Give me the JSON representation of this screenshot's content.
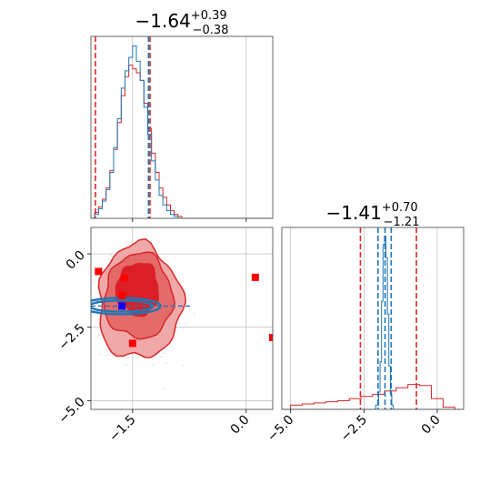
{
  "colors": {
    "red": "#d62728",
    "red_light": "#f0a8a8",
    "red_fill": "#e56a6a",
    "red_dark": "#dc1f26",
    "blue": "#1f77b4",
    "marker_red": "#ff0000",
    "marker_blue": "#0000ff",
    "grid": "#b0b0b0"
  },
  "chart_data": [
    {
      "type": "histogram",
      "panel": "top-left",
      "title": {
        "value": "−1.64",
        "plus": "+0.39",
        "minus": "−0.38"
      },
      "xlim": [
        -2.05,
        0.35
      ],
      "grid": true,
      "vlines": {
        "red": [
          -1.99,
          -1.27
        ],
        "blue": [
          -1.29
        ]
      },
      "series": [
        {
          "color": "red",
          "x": [
            -2.05,
            -2.0,
            -1.95,
            -1.9,
            -1.85,
            -1.8,
            -1.75,
            -1.7,
            -1.65,
            -1.6,
            -1.55,
            -1.5,
            -1.45,
            -1.4,
            -1.35,
            -1.3,
            -1.25,
            -1.2,
            -1.15,
            -1.1,
            -1.05,
            -1.0,
            -0.95,
            -0.9,
            -0.85,
            -0.8,
            0.35
          ],
          "values": [
            0.0,
            0.03,
            0.06,
            0.1,
            0.16,
            0.25,
            0.36,
            0.5,
            0.64,
            0.74,
            0.8,
            0.78,
            0.76,
            0.72,
            0.6,
            0.47,
            0.34,
            0.24,
            0.16,
            0.11,
            0.07,
            0.04,
            0.02,
            0.01,
            0.0,
            0.0,
            0.0
          ]
        },
        {
          "color": "blue",
          "x": [
            -2.05,
            -2.0,
            -1.95,
            -1.9,
            -1.85,
            -1.8,
            -1.75,
            -1.7,
            -1.65,
            -1.6,
            -1.55,
            -1.5,
            -1.45,
            -1.4,
            -1.35,
            -1.3,
            -1.25,
            -1.2,
            -1.15,
            -1.1,
            -1.05,
            -1.0,
            -0.95,
            -0.9,
            -0.85,
            -0.8,
            0.35
          ],
          "values": [
            0.0,
            0.02,
            0.05,
            0.09,
            0.15,
            0.24,
            0.37,
            0.52,
            0.68,
            0.77,
            0.84,
            0.9,
            0.82,
            0.72,
            0.58,
            0.44,
            0.3,
            0.2,
            0.12,
            0.07,
            0.04,
            0.02,
            0.01,
            0.0,
            0.0,
            0.0,
            0.0
          ]
        }
      ]
    },
    {
      "type": "scatter",
      "panel": "bottom-left",
      "xlim": [
        -2.05,
        0.35
      ],
      "ylim": [
        -5.3,
        0.9
      ],
      "xticks": [
        -1.5,
        0.0
      ],
      "xtick_labels": [
        "−1.5",
        "0.0"
      ],
      "yticks": [
        0.0,
        -2.5,
        -5.0
      ],
      "ytick_labels": [
        "0.0",
        "−2.5",
        "−5.0"
      ],
      "grid": true,
      "red_contours": [
        {
          "center": [
            -1.41,
            -1.64
          ],
          "rx": 0.55,
          "ry": 1.95,
          "label": "outer"
        },
        {
          "center": [
            -1.42,
            -1.45
          ],
          "rx": 0.45,
          "ry": 1.45,
          "label": "middle"
        },
        {
          "center": [
            -1.43,
            -1.2
          ],
          "rx": 0.28,
          "ry": 0.9,
          "label": "inner"
        }
      ],
      "blue_contours": [
        {
          "center": [
            -1.65,
            -1.78
          ],
          "rx": 0.52,
          "ry": 0.28
        },
        {
          "center": [
            -1.65,
            -1.78
          ],
          "rx": 0.42,
          "ry": 0.19
        }
      ],
      "red_markers": [
        {
          "x": -1.95,
          "y": -0.6
        },
        {
          "x": -1.61,
          "y": -0.82
        },
        {
          "x": -1.64,
          "y": -1.42
        },
        {
          "x": -1.5,
          "y": -3.05
        },
        {
          "x": 0.12,
          "y": -0.8
        },
        {
          "x": 0.35,
          "y": -2.85
        }
      ],
      "blue_marker": {
        "x": -1.64,
        "y": -1.78
      }
    },
    {
      "type": "histogram",
      "panel": "bottom-right",
      "title": {
        "value": "−1.41",
        "plus": "+0.70",
        "minus": "−1.21"
      },
      "xlim": [
        -5.3,
        0.9
      ],
      "xticks": [
        -5.0,
        -2.5,
        0.0
      ],
      "xtick_labels": [
        "−5.0",
        "−2.5",
        "0.0"
      ],
      "grid": true,
      "vlines": {
        "red": [
          -2.62,
          -0.71
        ],
        "blue": [
          -2.02,
          -1.78,
          -1.57
        ]
      },
      "series": [
        {
          "color": "red",
          "x": [
            -5.3,
            -5.0,
            -4.6,
            -4.2,
            -3.8,
            -3.4,
            -3.0,
            -2.6,
            -2.2,
            -1.8,
            -1.4,
            -1.0,
            -0.6,
            -0.2,
            0.2,
            0.6,
            0.9
          ],
          "values": [
            0.0,
            0.02,
            0.025,
            0.03,
            0.035,
            0.04,
            0.05,
            0.06,
            0.07,
            0.085,
            0.1,
            0.115,
            0.11,
            0.05,
            0.01,
            0.0,
            0.0
          ]
        },
        {
          "color": "blue",
          "x": [
            -5.3,
            -2.2,
            -2.1,
            -2.0,
            -1.95,
            -1.9,
            -1.85,
            -1.8,
            -1.75,
            -1.7,
            -1.65,
            -1.6,
            -1.55,
            -1.5,
            -1.4,
            0.9
          ],
          "values": [
            0.0,
            0.0,
            0.02,
            0.08,
            0.22,
            0.5,
            0.76,
            0.8,
            0.7,
            0.44,
            0.2,
            0.07,
            0.02,
            0.0,
            0.0,
            0.0
          ]
        }
      ]
    }
  ]
}
